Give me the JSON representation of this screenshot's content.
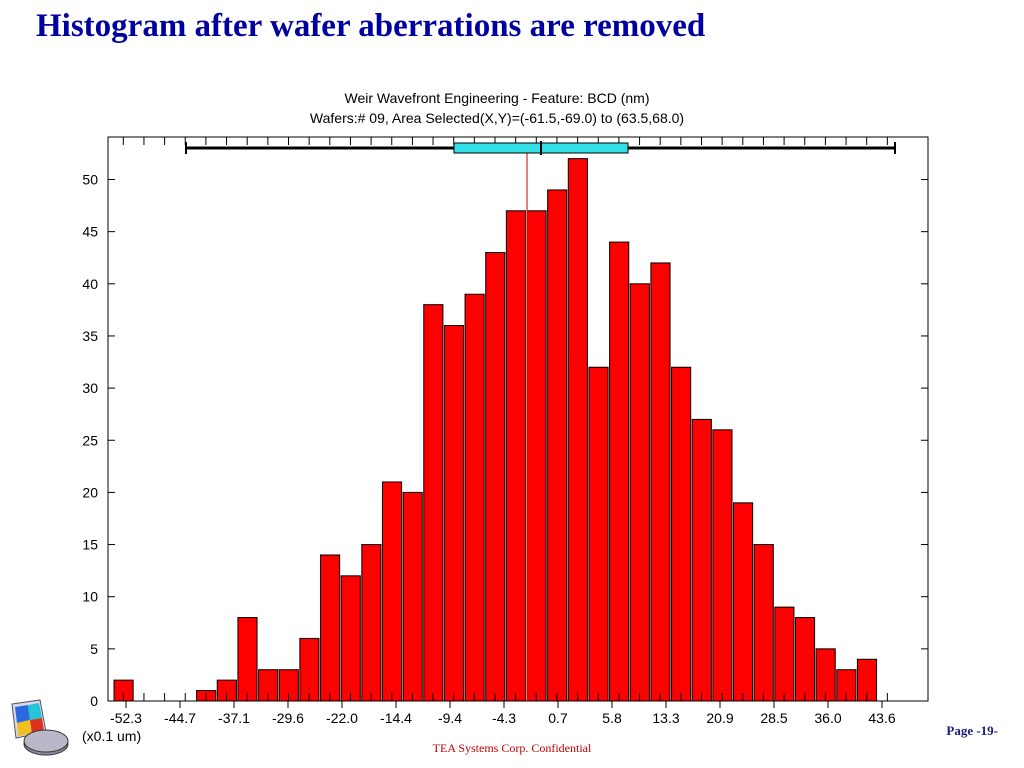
{
  "slide": {
    "title": "Histogram after wafer aberrations are removed",
    "page": "Page -19-",
    "footer": "TEA Systems Corp. Confidential"
  },
  "chart_data": {
    "type": "bar",
    "title": "Weir Wavefront Engineering - Feature: BCD (nm)",
    "subtitle": "Wafers:# 09, Area Selected(X,Y)=(-61.5,-69.0) to (63.5,68.0)",
    "xlabel": "(x0.1 um)",
    "ylabel": "",
    "x_tick_labels": [
      "-52.3",
      "-44.7",
      "-37.1",
      "-29.6",
      "-22.0",
      "-14.4",
      "-9.4",
      "-4.3",
      "0.7",
      "5.8",
      "13.3",
      "20.9",
      "28.5",
      "36.0",
      "43.6"
    ],
    "y_ticks": [
      0,
      5,
      10,
      15,
      20,
      25,
      30,
      35,
      40,
      45,
      50
    ],
    "ylim": [
      0,
      54
    ],
    "values": [
      2,
      0,
      0,
      0,
      1,
      2,
      8,
      3,
      3,
      6,
      14,
      12,
      15,
      21,
      20,
      38,
      36,
      39,
      43,
      47,
      47,
      49,
      52,
      32,
      44,
      40,
      42,
      32,
      27,
      26,
      19,
      15,
      9,
      8,
      5,
      3,
      4
    ],
    "bar_color": "#ff0000",
    "mean_line_color": "#d00000",
    "range_bar": {
      "outer_color": "#000000",
      "inner_color": "#33e0e8"
    },
    "grid": false
  }
}
